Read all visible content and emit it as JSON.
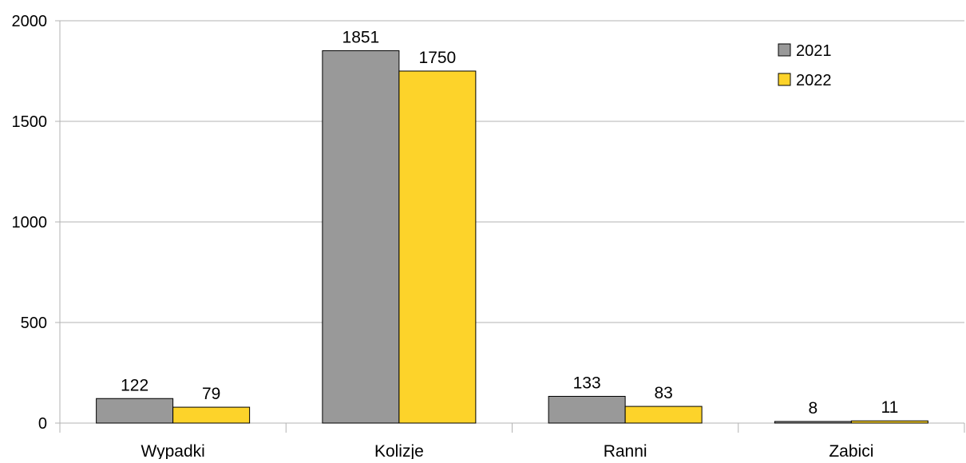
{
  "chart_data": {
    "type": "bar",
    "title": "",
    "xlabel": "",
    "ylabel": "",
    "categories": [
      "Wypadki",
      "Kolizje",
      "Ranni",
      "Zabici"
    ],
    "series": [
      {
        "name": "2021",
        "values": [
          122,
          1851,
          133,
          8
        ],
        "color": "#999999"
      },
      {
        "name": "2022",
        "values": [
          79,
          1750,
          83,
          11
        ],
        "color": "#fdd32a"
      }
    ],
    "ylim": [
      0,
      2000
    ],
    "yticks": [
      "0",
      "500",
      "1000",
      "1500",
      "2000"
    ],
    "grid": true,
    "legend": "top-right",
    "data_labels": true
  }
}
